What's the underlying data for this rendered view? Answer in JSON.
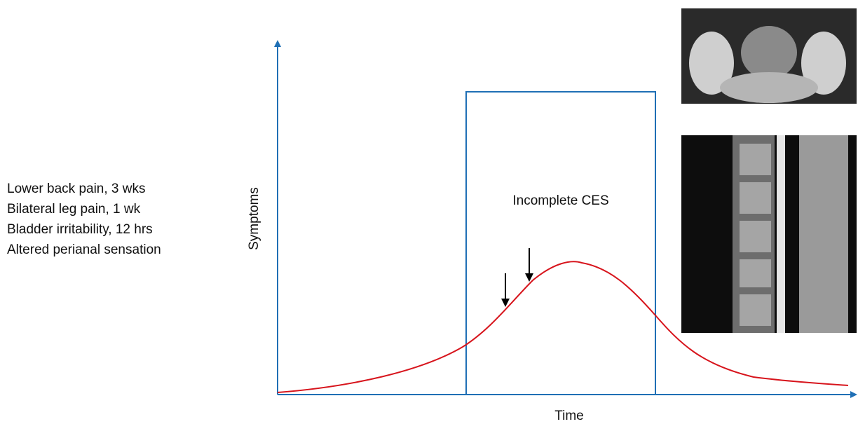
{
  "symptoms": [
    "Lower back pain, 3 wks",
    "Bilateral leg pain, 1 wk",
    "Bladder irritability, 12 hrs",
    "Altered perianal sensation"
  ],
  "axes": {
    "y_label": "Symptoms",
    "x_label": "Time"
  },
  "box_label": "Incomplete CES"
}
